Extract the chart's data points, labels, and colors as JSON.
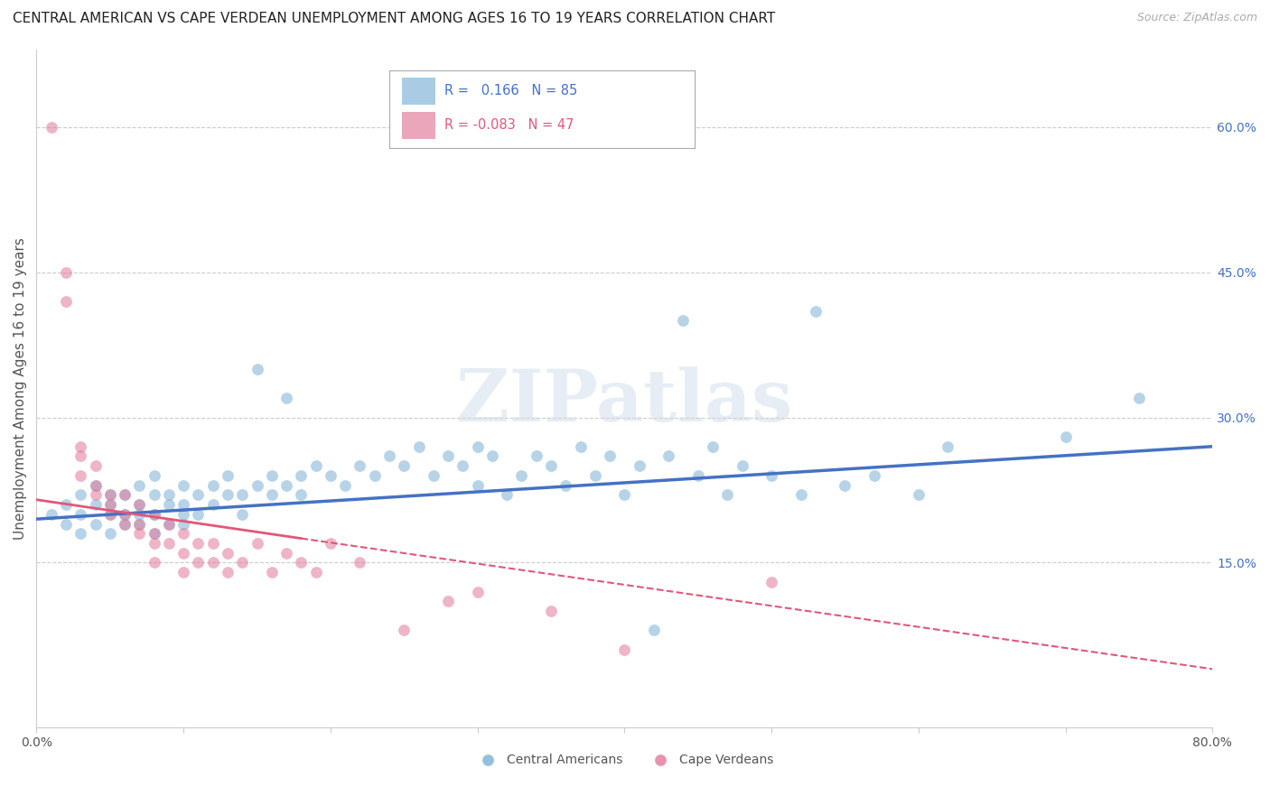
{
  "title": "CENTRAL AMERICAN VS CAPE VERDEAN UNEMPLOYMENT AMONG AGES 16 TO 19 YEARS CORRELATION CHART",
  "source": "Source: ZipAtlas.com",
  "ylabel": "Unemployment Among Ages 16 to 19 years",
  "xlim": [
    0.0,
    0.8
  ],
  "ylim": [
    -0.02,
    0.68
  ],
  "ytick_positions": [
    0.15,
    0.3,
    0.45,
    0.6
  ],
  "ytick_labels": [
    "15.0%",
    "30.0%",
    "45.0%",
    "60.0%"
  ],
  "right_ytick_positions": [
    0.15,
    0.3,
    0.45,
    0.6
  ],
  "right_ytick_labels": [
    "15.0%",
    "30.0%",
    "45.0%",
    "60.0%"
  ],
  "blue_scatter": [
    [
      0.01,
      0.2
    ],
    [
      0.02,
      0.19
    ],
    [
      0.02,
      0.21
    ],
    [
      0.03,
      0.2
    ],
    [
      0.03,
      0.22
    ],
    [
      0.03,
      0.18
    ],
    [
      0.04,
      0.21
    ],
    [
      0.04,
      0.19
    ],
    [
      0.04,
      0.23
    ],
    [
      0.05,
      0.2
    ],
    [
      0.05,
      0.22
    ],
    [
      0.05,
      0.18
    ],
    [
      0.05,
      0.21
    ],
    [
      0.06,
      0.19
    ],
    [
      0.06,
      0.22
    ],
    [
      0.06,
      0.2
    ],
    [
      0.07,
      0.21
    ],
    [
      0.07,
      0.19
    ],
    [
      0.07,
      0.23
    ],
    [
      0.07,
      0.2
    ],
    [
      0.08,
      0.22
    ],
    [
      0.08,
      0.2
    ],
    [
      0.08,
      0.18
    ],
    [
      0.08,
      0.24
    ],
    [
      0.09,
      0.21
    ],
    [
      0.09,
      0.19
    ],
    [
      0.09,
      0.22
    ],
    [
      0.1,
      0.2
    ],
    [
      0.1,
      0.23
    ],
    [
      0.1,
      0.19
    ],
    [
      0.1,
      0.21
    ],
    [
      0.11,
      0.22
    ],
    [
      0.11,
      0.2
    ],
    [
      0.12,
      0.23
    ],
    [
      0.12,
      0.21
    ],
    [
      0.13,
      0.22
    ],
    [
      0.13,
      0.24
    ],
    [
      0.14,
      0.2
    ],
    [
      0.14,
      0.22
    ],
    [
      0.15,
      0.23
    ],
    [
      0.15,
      0.35
    ],
    [
      0.16,
      0.22
    ],
    [
      0.16,
      0.24
    ],
    [
      0.17,
      0.23
    ],
    [
      0.17,
      0.32
    ],
    [
      0.18,
      0.24
    ],
    [
      0.18,
      0.22
    ],
    [
      0.19,
      0.25
    ],
    [
      0.2,
      0.24
    ],
    [
      0.21,
      0.23
    ],
    [
      0.22,
      0.25
    ],
    [
      0.23,
      0.24
    ],
    [
      0.24,
      0.26
    ],
    [
      0.25,
      0.25
    ],
    [
      0.26,
      0.27
    ],
    [
      0.27,
      0.24
    ],
    [
      0.28,
      0.26
    ],
    [
      0.29,
      0.25
    ],
    [
      0.3,
      0.27
    ],
    [
      0.3,
      0.23
    ],
    [
      0.31,
      0.26
    ],
    [
      0.32,
      0.22
    ],
    [
      0.33,
      0.24
    ],
    [
      0.34,
      0.26
    ],
    [
      0.35,
      0.25
    ],
    [
      0.36,
      0.23
    ],
    [
      0.37,
      0.27
    ],
    [
      0.38,
      0.24
    ],
    [
      0.39,
      0.26
    ],
    [
      0.4,
      0.22
    ],
    [
      0.41,
      0.25
    ],
    [
      0.42,
      0.08
    ],
    [
      0.43,
      0.26
    ],
    [
      0.44,
      0.4
    ],
    [
      0.45,
      0.24
    ],
    [
      0.46,
      0.27
    ],
    [
      0.47,
      0.22
    ],
    [
      0.48,
      0.25
    ],
    [
      0.5,
      0.24
    ],
    [
      0.52,
      0.22
    ],
    [
      0.53,
      0.41
    ],
    [
      0.55,
      0.23
    ],
    [
      0.57,
      0.24
    ],
    [
      0.6,
      0.22
    ],
    [
      0.62,
      0.27
    ],
    [
      0.7,
      0.28
    ],
    [
      0.75,
      0.32
    ]
  ],
  "pink_scatter": [
    [
      0.01,
      0.6
    ],
    [
      0.02,
      0.45
    ],
    [
      0.02,
      0.42
    ],
    [
      0.03,
      0.27
    ],
    [
      0.03,
      0.26
    ],
    [
      0.03,
      0.24
    ],
    [
      0.04,
      0.25
    ],
    [
      0.04,
      0.23
    ],
    [
      0.04,
      0.22
    ],
    [
      0.05,
      0.22
    ],
    [
      0.05,
      0.21
    ],
    [
      0.05,
      0.2
    ],
    [
      0.06,
      0.22
    ],
    [
      0.06,
      0.2
    ],
    [
      0.06,
      0.19
    ],
    [
      0.07,
      0.21
    ],
    [
      0.07,
      0.19
    ],
    [
      0.07,
      0.18
    ],
    [
      0.08,
      0.2
    ],
    [
      0.08,
      0.18
    ],
    [
      0.08,
      0.17
    ],
    [
      0.08,
      0.15
    ],
    [
      0.09,
      0.19
    ],
    [
      0.09,
      0.17
    ],
    [
      0.1,
      0.18
    ],
    [
      0.1,
      0.16
    ],
    [
      0.1,
      0.14
    ],
    [
      0.11,
      0.17
    ],
    [
      0.11,
      0.15
    ],
    [
      0.12,
      0.17
    ],
    [
      0.12,
      0.15
    ],
    [
      0.13,
      0.16
    ],
    [
      0.13,
      0.14
    ],
    [
      0.14,
      0.15
    ],
    [
      0.15,
      0.17
    ],
    [
      0.16,
      0.14
    ],
    [
      0.17,
      0.16
    ],
    [
      0.18,
      0.15
    ],
    [
      0.19,
      0.14
    ],
    [
      0.2,
      0.17
    ],
    [
      0.22,
      0.15
    ],
    [
      0.25,
      0.08
    ],
    [
      0.28,
      0.11
    ],
    [
      0.3,
      0.12
    ],
    [
      0.35,
      0.1
    ],
    [
      0.4,
      0.06
    ],
    [
      0.5,
      0.13
    ]
  ],
  "blue_line": {
    "x0": 0.0,
    "x1": 0.8,
    "y0": 0.195,
    "y1": 0.27
  },
  "pink_line_solid": {
    "x0": 0.0,
    "x1": 0.18,
    "y0": 0.215,
    "y1": 0.175
  },
  "pink_line_dashed": {
    "x0": 0.18,
    "x1": 0.8,
    "y0": 0.175,
    "y1": 0.04
  },
  "blue_line_color": "#4472c4",
  "pink_line_color": "#e05878",
  "scatter_blue_color": "#7bafd4",
  "scatter_pink_color": "#e07898",
  "scatter_alpha": 0.55,
  "scatter_size": 85,
  "grid_color": "#cccccc",
  "watermark": "ZIPatlas",
  "background_color": "#ffffff",
  "title_fontsize": 11,
  "axis_label_fontsize": 11,
  "tick_fontsize": 10,
  "source_text": "Source: ZipAtlas.com"
}
